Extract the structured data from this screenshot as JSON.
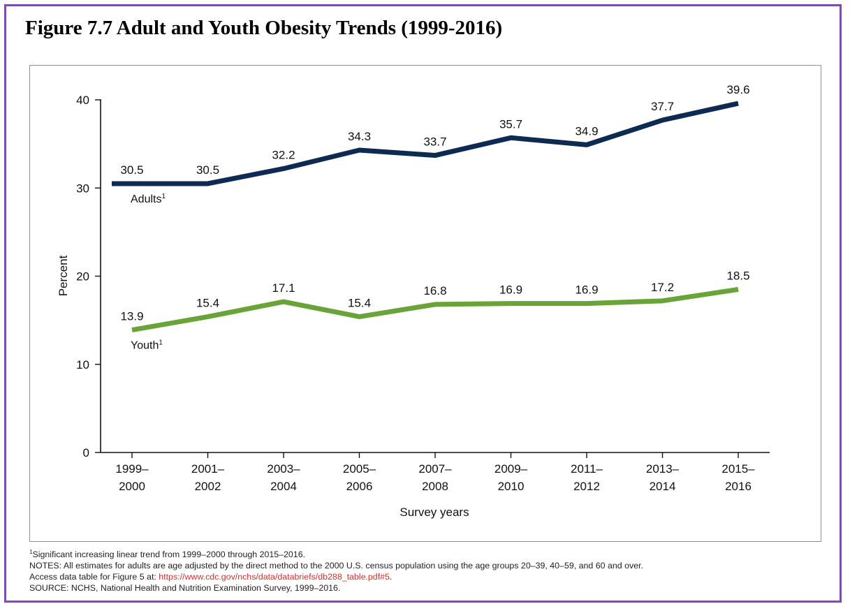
{
  "figure": {
    "title": "Figure 7.7 Adult and Youth Obesity Trends (1999-2016)"
  },
  "chart_data": {
    "type": "line",
    "title": "",
    "xlabel": "Survey years",
    "ylabel": "Percent",
    "ylim": [
      0,
      40
    ],
    "yticks": [
      0,
      10,
      20,
      30,
      40
    ],
    "grid": false,
    "categories": [
      [
        "1999–",
        "2000"
      ],
      [
        "2001–",
        "2002"
      ],
      [
        "2003–",
        "2004"
      ],
      [
        "2005–",
        "2006"
      ],
      [
        "2007–",
        "2008"
      ],
      [
        "2009–",
        "2010"
      ],
      [
        "2011–",
        "2012"
      ],
      [
        "2013–",
        "2014"
      ],
      [
        "2015–",
        "2016"
      ]
    ],
    "series": [
      {
        "name": "Adults",
        "footnote_mark": "1",
        "color": "#0d2a52",
        "values": [
          30.5,
          30.5,
          32.2,
          34.3,
          33.7,
          35.7,
          34.9,
          37.7,
          39.6
        ],
        "data_labels": [
          "30.5",
          "30.5",
          "32.2",
          "34.3",
          "33.7",
          "35.7",
          "34.9",
          "37.7",
          "39.6"
        ]
      },
      {
        "name": "Youth",
        "footnote_mark": "1",
        "color": "#6aa338",
        "values": [
          13.9,
          15.4,
          17.1,
          15.4,
          16.8,
          16.9,
          16.9,
          17.2,
          18.5
        ],
        "data_labels": [
          "13.9",
          "15.4",
          "17.1",
          "15.4",
          "16.8",
          "16.9",
          "16.9",
          "17.2",
          "18.5"
        ]
      }
    ]
  },
  "notes": {
    "footnote_mark": "1",
    "footnote": "Significant increasing linear trend from 1999–2000 through 2015–2016.",
    "notes_line": "NOTES: All estimates for adults are age adjusted by the direct method to the 2000 U.S. census population using the age groups 20–39, 40–59, and 60 and over.",
    "access_prefix": "Access data table for Figure 5 at: ",
    "access_link": "https://www.cdc.gov/nchs/data/databriefs/db288_table.pdf#5",
    "access_suffix": ".",
    "source": "SOURCE: NCHS, National Health and Nutrition Examination Survey, 1999–2016."
  }
}
